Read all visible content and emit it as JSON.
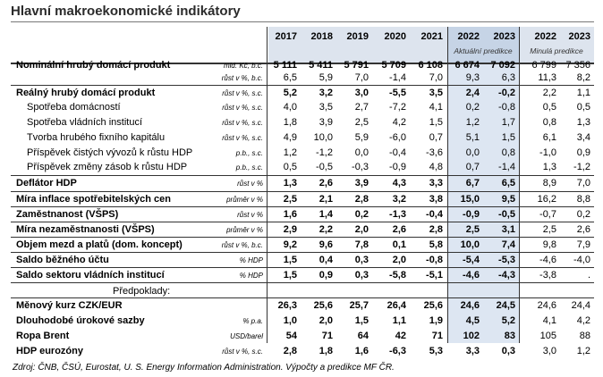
{
  "title": "Hlavní makroekonomické indikátory",
  "years": [
    "2017",
    "2018",
    "2019",
    "2020",
    "2021",
    "2022",
    "2023",
    "2022",
    "2023"
  ],
  "subheaders": {
    "actual": "Aktuální predikce",
    "previous": "Minulá predikce"
  },
  "source": "Zdroj: ČNB, ČSÚ, Eurostat, U. S. Energy Information Administration. Výpočty a predikce MF ČR.",
  "rows": [
    {
      "label": "Nominální hrubý domácí produkt",
      "unit": "mld. Kč, b.c.",
      "values": [
        "5 111",
        "5 411",
        "5 791",
        "5 709",
        "6 108",
        "6 674",
        "7 092",
        "6 799",
        "7 356"
      ]
    },
    {
      "label": "",
      "unit": "růst v %, b.c.",
      "values": [
        "6,5",
        "5,9",
        "7,0",
        "-1,4",
        "7,0",
        "9,3",
        "6,3",
        "11,3",
        "8,2"
      ]
    },
    {
      "label": "Reálný hrubý domácí produkt",
      "unit": "růst v %, s.c.",
      "values": [
        "5,2",
        "3,2",
        "3,0",
        "-5,5",
        "3,5",
        "2,4",
        "-0,2",
        "2,2",
        "1,1"
      ]
    },
    {
      "label": "Spotřeba domácností",
      "unit": "růst v %, s.c.",
      "values": [
        "4,0",
        "3,5",
        "2,7",
        "-7,2",
        "4,1",
        "0,2",
        "-0,8",
        "0,5",
        "0,5"
      ]
    },
    {
      "label": "Spotřeba vládních institucí",
      "unit": "růst v %, s.c.",
      "values": [
        "1,8",
        "3,9",
        "2,5",
        "4,2",
        "1,5",
        "1,2",
        "1,7",
        "0,8",
        "1,3"
      ]
    },
    {
      "label": "Tvorba hrubého fixního kapitálu",
      "unit": "růst v %, s.c.",
      "values": [
        "4,9",
        "10,0",
        "5,9",
        "-6,0",
        "0,7",
        "5,1",
        "1,5",
        "6,1",
        "3,4"
      ]
    },
    {
      "label": "Příspěvek čistých vývozů k růstu HDP",
      "unit": "p.b., s.c.",
      "values": [
        "1,2",
        "-1,2",
        "0,0",
        "-0,4",
        "-3,6",
        "0,0",
        "0,8",
        "-1,0",
        "0,9"
      ]
    },
    {
      "label": "Příspěvek změny zásob k růstu HDP",
      "unit": "p.b., s.c.",
      "values": [
        "0,5",
        "-0,5",
        "-0,3",
        "-0,9",
        "4,8",
        "0,7",
        "-1,4",
        "1,3",
        "-1,2"
      ]
    },
    {
      "label": "Deflátor HDP",
      "unit": "růst v %",
      "values": [
        "1,3",
        "2,6",
        "3,9",
        "4,3",
        "3,3",
        "6,7",
        "6,5",
        "8,9",
        "7,0"
      ]
    },
    {
      "label": "Míra inflace spotřebitelských cen",
      "unit": "průměr v %",
      "values": [
        "2,5",
        "2,1",
        "2,8",
        "3,2",
        "3,8",
        "15,0",
        "9,5",
        "16,2",
        "8,8"
      ]
    },
    {
      "label": "Zaměstnanost (VŠPS)",
      "unit": "růst v %",
      "values": [
        "1,6",
        "1,4",
        "0,2",
        "-1,3",
        "-0,4",
        "-0,9",
        "-0,5",
        "-0,7",
        "0,2"
      ]
    },
    {
      "label": "Míra nezaměstnanosti (VŠPS)",
      "unit": "průměr v %",
      "values": [
        "2,9",
        "2,2",
        "2,0",
        "2,6",
        "2,8",
        "2,5",
        "3,1",
        "2,5",
        "2,6"
      ]
    },
    {
      "label": "Objem mezd a platů (dom. koncept)",
      "unit": "růst v %, b.c.",
      "values": [
        "9,2",
        "9,6",
        "7,8",
        "0,1",
        "5,8",
        "10,0",
        "7,4",
        "9,8",
        "7,9"
      ]
    },
    {
      "label": "Saldo běžného účtu",
      "unit": "% HDP",
      "values": [
        "1,5",
        "0,4",
        "0,3",
        "2,0",
        "-0,8",
        "-5,4",
        "-5,3",
        "-4,6",
        "-4,0"
      ]
    },
    {
      "label": "Saldo sektoru vládních institucí",
      "unit": "% HDP",
      "values": [
        "1,5",
        "0,9",
        "0,3",
        "-5,8",
        "-5,1",
        "-4,6",
        "-4,3",
        "-3,8",
        "."
      ]
    },
    {
      "label": "Předpoklady:",
      "unit": "",
      "values": [
        "",
        "",
        "",
        "",
        "",
        "",
        "",
        "",
        ""
      ]
    },
    {
      "label": "Měnový kurz CZK/EUR",
      "unit": "",
      "values": [
        "26,3",
        "25,6",
        "25,7",
        "26,4",
        "25,6",
        "24,6",
        "24,5",
        "24,6",
        "24,4"
      ]
    },
    {
      "label": "Dlouhodobé úrokové sazby",
      "unit": "% p.a.",
      "values": [
        "1,0",
        "2,0",
        "1,5",
        "1,1",
        "1,9",
        "4,5",
        "5,2",
        "4,1",
        "4,2"
      ]
    },
    {
      "label": "Ropa Brent",
      "unit": "USD/barel",
      "values": [
        "54",
        "71",
        "64",
        "42",
        "71",
        "102",
        "83",
        "105",
        "88"
      ]
    },
    {
      "label": "HDP eurozóny",
      "unit": "růst v %, s.c.",
      "values": [
        "2,8",
        "1,8",
        "1,6",
        "-6,3",
        "5,3",
        "3,3",
        "0,3",
        "3,0",
        "1,2"
      ]
    }
  ]
}
